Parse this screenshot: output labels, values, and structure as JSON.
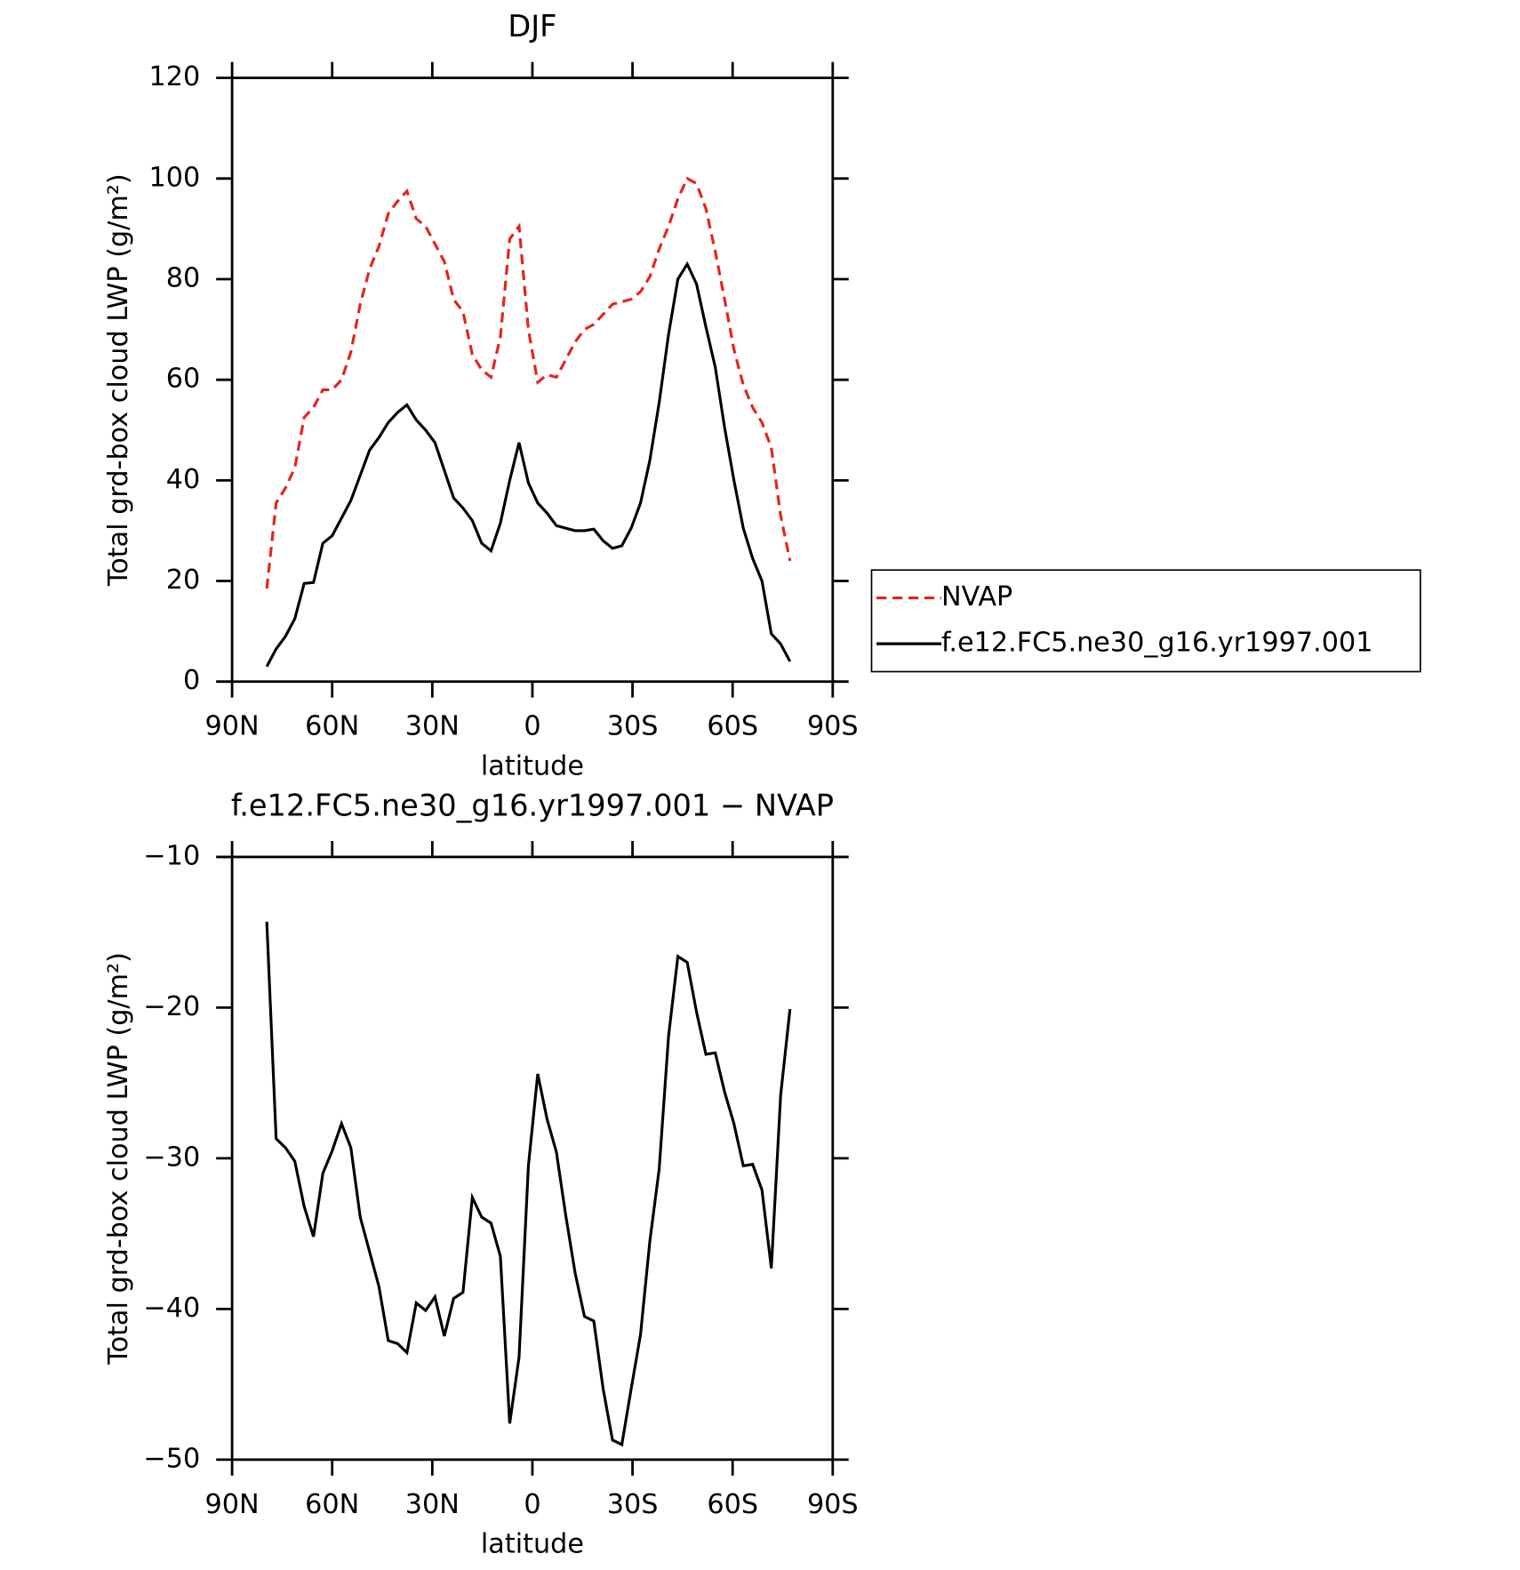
{
  "chart_data": [
    {
      "type": "line",
      "title": "DJF",
      "xlabel": "latitude",
      "ylabel": "Total grd-box cloud LWP (g/m²)",
      "x": [
        79.6,
        76.8,
        74,
        71.2,
        68.4,
        65.6,
        62.8,
        60,
        57.2,
        54.4,
        51.6,
        48.8,
        46,
        43.2,
        40.4,
        37.6,
        34.8,
        32,
        29.2,
        26.4,
        23.6,
        20.8,
        18,
        15.2,
        12.4,
        9.6,
        6.8,
        4,
        1.2,
        -1.6,
        -4.4,
        -7.2,
        -10,
        -12.8,
        -15.6,
        -18.4,
        -21.2,
        -24,
        -26.8,
        -29.6,
        -32.4,
        -35.2,
        -38,
        -40.8,
        -43.6,
        -46.4,
        -49.2,
        -52,
        -54.8,
        -57.6,
        -60.4,
        -63.2,
        -66,
        -68.8,
        -71.6,
        -74.4,
        -77.2
      ],
      "series": [
        {
          "name": "NVAP",
          "color": "#e8211d",
          "style": "dashed",
          "values": [
            18.5,
            35.5,
            38.5,
            42.5,
            52.5,
            54.5,
            58,
            58,
            60,
            65.5,
            75,
            82,
            86.5,
            93,
            95.5,
            97.5,
            92,
            90.5,
            87,
            83.5,
            76,
            73.5,
            65,
            62,
            60.5,
            68.5,
            88,
            90.5,
            70,
            59.5,
            61,
            60.5,
            64,
            67.5,
            70,
            71,
            73,
            75,
            75.5,
            76,
            77.5,
            80.5,
            86,
            90.5,
            96,
            100,
            99,
            94,
            85.5,
            76,
            66,
            59,
            54.5,
            51.5,
            46.5,
            33,
            24
          ]
        },
        {
          "name": "f.e12.FC5.ne30_g16.yr1997.001",
          "color": "#000000",
          "style": "solid",
          "values": [
            3,
            6.5,
            9,
            12.5,
            19.5,
            19.7,
            27.5,
            29,
            32.5,
            36,
            41,
            46,
            48.5,
            51.5,
            53.5,
            55,
            52,
            50,
            47.5,
            42,
            36.5,
            34.5,
            32,
            27.5,
            26,
            31.5,
            40,
            47.5,
            39.5,
            35.5,
            33.5,
            31,
            30.5,
            30,
            30,
            30.3,
            28,
            26.5,
            27,
            30.5,
            35.5,
            44,
            55.5,
            69,
            80,
            83,
            79,
            70.5,
            62.5,
            50.5,
            40,
            30.5,
            24.5,
            20,
            9.5,
            7.5,
            4
          ]
        }
      ],
      "xlim": [
        90,
        -90
      ],
      "xticks": [
        {
          "value": 90,
          "label": "90N"
        },
        {
          "value": 60,
          "label": "60N"
        },
        {
          "value": 30,
          "label": "30N"
        },
        0,
        {
          "value": -30,
          "label": "30S"
        },
        {
          "value": -60,
          "label": "60S"
        },
        {
          "value": -90,
          "label": "90S"
        }
      ],
      "ylim": [
        0,
        120
      ],
      "yticks": [
        0,
        20,
        40,
        60,
        80,
        100,
        120
      ],
      "legend": "right",
      "grid": false
    },
    {
      "type": "line",
      "title": "f.e12.FC5.ne30_g16.yr1997.001 − NVAP",
      "xlabel": "latitude",
      "ylabel": "Total grd-box cloud LWP (g/m²)",
      "x": [
        79.6,
        76.8,
        74,
        71.2,
        68.4,
        65.6,
        62.8,
        60,
        57.2,
        54.4,
        51.6,
        48.8,
        46,
        43.2,
        40.4,
        37.6,
        34.8,
        32,
        29.2,
        26.4,
        23.6,
        20.8,
        18,
        15.2,
        12.4,
        9.6,
        6.8,
        4,
        1.2,
        -1.6,
        -4.4,
        -7.2,
        -10,
        -12.8,
        -15.6,
        -18.4,
        -21.2,
        -24,
        -26.8,
        -29.6,
        -32.4,
        -35.2,
        -38,
        -40.8,
        -43.6,
        -46.4,
        -49.2,
        -52,
        -54.8,
        -57.6,
        -60.4,
        -63.2,
        -66,
        -68.8,
        -71.6,
        -74.4,
        -77.2
      ],
      "values": [
        -14.3,
        -28.7,
        -29.3,
        -30.2,
        -33.2,
        -35.2,
        -31,
        -29.5,
        -27.7,
        -29.3,
        -33.9,
        -36.2,
        -38.5,
        -42.1,
        -42.3,
        -42.9,
        -39.6,
        -40.1,
        -39.2,
        -41.8,
        -39.3,
        -38.9,
        -32.6,
        -33.9,
        -34.3,
        -36.5,
        -47.6,
        -43.2,
        -30.5,
        -24.4,
        -27.4,
        -29.6,
        -33.8,
        -37.6,
        -40.5,
        -40.8,
        -45.3,
        -48.7,
        -49,
        -45.3,
        -41.7,
        -35.5,
        -30.7,
        -21.9,
        -16.6,
        -17,
        -20.3,
        -23.1,
        -23,
        -25.6,
        -27.7,
        -30.5,
        -30.4,
        -32.1,
        -37.3,
        -25.8,
        -20.1
      ],
      "color": "#000000",
      "xlim": [
        90,
        -90
      ],
      "xticks": [
        {
          "value": 90,
          "label": "90N"
        },
        {
          "value": 60,
          "label": "60N"
        },
        {
          "value": 30,
          "label": "30N"
        },
        0,
        {
          "value": -30,
          "label": "30S"
        },
        {
          "value": -60,
          "label": "60S"
        },
        {
          "value": -90,
          "label": "90S"
        }
      ],
      "ylim": [
        -50,
        -10
      ],
      "yticks": [
        {
          "value": -50,
          "label": "−50"
        },
        {
          "value": -40,
          "label": "−40"
        },
        {
          "value": -30,
          "label": "−30"
        },
        {
          "value": -20,
          "label": "−20"
        },
        {
          "value": -10,
          "label": "−10"
        }
      ],
      "grid": false
    }
  ]
}
